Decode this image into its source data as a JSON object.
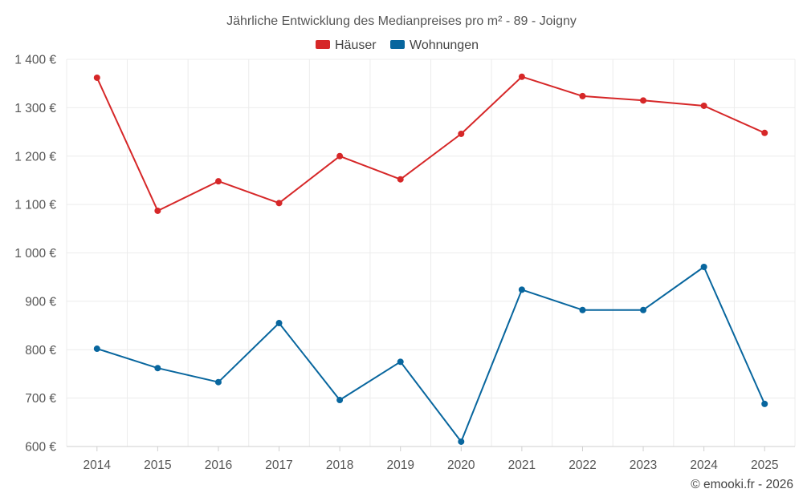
{
  "chart_data": {
    "type": "line",
    "title": "Jährliche Entwicklung des Medianpreises pro m² - 89 - Joigny",
    "categories": [
      "2014",
      "2015",
      "2016",
      "2017",
      "2018",
      "2019",
      "2020",
      "2021",
      "2022",
      "2023",
      "2024",
      "2025"
    ],
    "series": [
      {
        "name": "Häuser",
        "color": "#d62728",
        "values": [
          1362,
          1087,
          1148,
          1103,
          1200,
          1152,
          1246,
          1364,
          1324,
          1315,
          1304,
          1248
        ]
      },
      {
        "name": "Wohnungen",
        "color": "#08669e",
        "values": [
          802,
          762,
          733,
          855,
          696,
          775,
          610,
          924,
          882,
          882,
          971,
          688
        ]
      }
    ],
    "y_ticks": [
      600,
      700,
      800,
      900,
      1000,
      1100,
      1200,
      1300,
      1400
    ],
    "y_tick_labels": [
      "600 €",
      "700 €",
      "800 €",
      "900 €",
      "1 000 €",
      "1 100 €",
      "1 200 €",
      "1 300 €",
      "1 400 €"
    ],
    "ylim": [
      600,
      1400
    ],
    "xlabel": "",
    "ylabel": "",
    "grid": true,
    "legend_position": "top-center"
  },
  "credit": "© emooki.fr - 2026"
}
